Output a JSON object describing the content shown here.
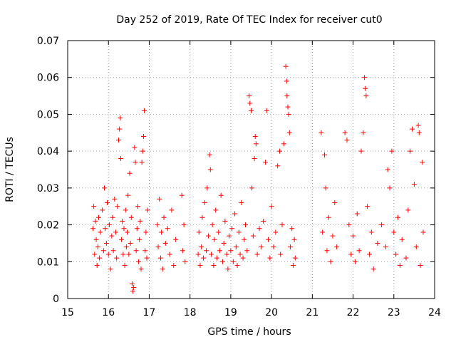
{
  "chart_data": {
    "type": "scatter",
    "title": "Day 252 of 2019, Rate Of TEC Index for receiver cut0",
    "xlabel": "GPS time / hours",
    "ylabel": "ROTI / TECUs",
    "xlim": [
      15,
      24
    ],
    "ylim": [
      0,
      0.07
    ],
    "xticks": [
      15,
      16,
      17,
      18,
      19,
      20,
      21,
      22,
      23,
      24
    ],
    "xtick_labels": [
      "15",
      "16",
      "17",
      "18",
      "19",
      "20",
      "21",
      "22",
      "23",
      "24"
    ],
    "yticks": [
      0,
      0.01,
      0.02,
      0.03,
      0.04,
      0.05,
      0.06,
      0.07
    ],
    "ytick_labels": [
      "0",
      "0.01",
      "0.02",
      "0.03",
      "0.04",
      "0.05",
      "0.06",
      "0.07"
    ],
    "grid": true,
    "marker": "+",
    "color": "#ff0000",
    "series": [
      {
        "name": "ROTI",
        "points": [
          [
            15.62,
            0.019
          ],
          [
            15.64,
            0.025
          ],
          [
            15.66,
            0.012
          ],
          [
            15.68,
            0.021
          ],
          [
            15.7,
            0.016
          ],
          [
            15.72,
            0.009
          ],
          [
            15.74,
            0.014
          ],
          [
            15.76,
            0.022
          ],
          [
            15.78,
            0.011
          ],
          [
            15.8,
            0.018
          ],
          [
            15.85,
            0.024
          ],
          [
            15.88,
            0.013
          ],
          [
            15.9,
            0.03
          ],
          [
            15.92,
            0.019
          ],
          [
            15.95,
            0.015
          ],
          [
            15.97,
            0.026
          ],
          [
            16.0,
            0.012
          ],
          [
            16.02,
            0.02
          ],
          [
            16.05,
            0.008
          ],
          [
            16.08,
            0.017
          ],
          [
            16.1,
            0.022
          ],
          [
            16.12,
            0.013
          ],
          [
            16.15,
            0.027
          ],
          [
            16.18,
            0.018
          ],
          [
            16.2,
            0.011
          ],
          [
            16.22,
            0.025
          ],
          [
            16.25,
            0.043
          ],
          [
            16.27,
            0.046
          ],
          [
            16.29,
            0.049
          ],
          [
            16.3,
            0.038
          ],
          [
            16.32,
            0.016
          ],
          [
            16.34,
            0.021
          ],
          [
            16.36,
            0.012
          ],
          [
            16.38,
            0.019
          ],
          [
            16.4,
            0.009
          ],
          [
            16.42,
            0.024
          ],
          [
            16.44,
            0.014
          ],
          [
            16.46,
            0.018
          ],
          [
            16.48,
            0.028
          ],
          [
            16.5,
            0.012
          ],
          [
            16.52,
            0.034
          ],
          [
            16.54,
            0.015
          ],
          [
            16.56,
            0.022
          ],
          [
            16.58,
            0.004
          ],
          [
            16.6,
            0.002
          ],
          [
            16.62,
            0.003
          ],
          [
            16.64,
            0.041
          ],
          [
            16.66,
            0.037
          ],
          [
            16.68,
            0.013
          ],
          [
            16.7,
            0.019
          ],
          [
            16.72,
            0.025
          ],
          [
            16.74,
            0.01
          ],
          [
            16.76,
            0.016
          ],
          [
            16.78,
            0.021
          ],
          [
            16.8,
            0.008
          ],
          [
            16.82,
            0.037
          ],
          [
            16.84,
            0.04
          ],
          [
            16.86,
            0.044
          ],
          [
            16.88,
            0.051
          ],
          [
            16.9,
            0.013
          ],
          [
            16.92,
            0.018
          ],
          [
            16.94,
            0.011
          ],
          [
            16.96,
            0.024
          ],
          [
            17.2,
            0.02
          ],
          [
            17.22,
            0.014
          ],
          [
            17.25,
            0.027
          ],
          [
            17.28,
            0.011
          ],
          [
            17.3,
            0.018
          ],
          [
            17.33,
            0.008
          ],
          [
            17.36,
            0.022
          ],
          [
            17.4,
            0.015
          ],
          [
            17.45,
            0.019
          ],
          [
            17.5,
            0.012
          ],
          [
            17.55,
            0.024
          ],
          [
            17.6,
            0.009
          ],
          [
            17.65,
            0.016
          ],
          [
            17.8,
            0.028
          ],
          [
            17.82,
            0.013
          ],
          [
            17.85,
            0.02
          ],
          [
            17.88,
            0.01
          ],
          [
            18.2,
            0.012
          ],
          [
            18.22,
            0.018
          ],
          [
            18.25,
            0.009
          ],
          [
            18.28,
            0.014
          ],
          [
            18.3,
            0.022
          ],
          [
            18.33,
            0.011
          ],
          [
            18.36,
            0.026
          ],
          [
            18.4,
            0.013
          ],
          [
            18.42,
            0.03
          ],
          [
            18.45,
            0.017
          ],
          [
            18.48,
            0.039
          ],
          [
            18.5,
            0.035
          ],
          [
            18.52,
            0.012
          ],
          [
            18.55,
            0.02
          ],
          [
            18.58,
            0.009
          ],
          [
            18.6,
            0.016
          ],
          [
            18.63,
            0.024
          ],
          [
            18.66,
            0.011
          ],
          [
            18.7,
            0.018
          ],
          [
            18.73,
            0.013
          ],
          [
            18.76,
            0.028
          ],
          [
            18.8,
            0.01
          ],
          [
            18.83,
            0.015
          ],
          [
            18.86,
            0.021
          ],
          [
            18.9,
            0.012
          ],
          [
            18.93,
            0.008
          ],
          [
            18.96,
            0.017
          ],
          [
            19.0,
            0.013
          ],
          [
            19.03,
            0.019
          ],
          [
            19.06,
            0.01
          ],
          [
            19.1,
            0.023
          ],
          [
            19.13,
            0.014
          ],
          [
            19.16,
            0.009
          ],
          [
            19.2,
            0.018
          ],
          [
            19.23,
            0.012
          ],
          [
            19.26,
            0.026
          ],
          [
            19.3,
            0.011
          ],
          [
            19.33,
            0.016
          ],
          [
            19.36,
            0.02
          ],
          [
            19.4,
            0.013
          ],
          [
            19.45,
            0.055
          ],
          [
            19.47,
            0.053
          ],
          [
            19.5,
            0.051
          ],
          [
            19.52,
            0.03
          ],
          [
            19.55,
            0.017
          ],
          [
            19.58,
            0.038
          ],
          [
            19.6,
            0.044
          ],
          [
            19.62,
            0.042
          ],
          [
            19.65,
            0.012
          ],
          [
            19.7,
            0.019
          ],
          [
            19.75,
            0.014
          ],
          [
            19.8,
            0.021
          ],
          [
            19.85,
            0.037
          ],
          [
            19.88,
            0.051
          ],
          [
            19.92,
            0.016
          ],
          [
            19.96,
            0.011
          ],
          [
            20.0,
            0.025
          ],
          [
            20.05,
            0.014
          ],
          [
            20.1,
            0.018
          ],
          [
            20.15,
            0.036
          ],
          [
            20.2,
            0.04
          ],
          [
            20.22,
            0.012
          ],
          [
            20.26,
            0.02
          ],
          [
            20.3,
            0.042
          ],
          [
            20.35,
            0.063
          ],
          [
            20.37,
            0.059
          ],
          [
            20.38,
            0.055
          ],
          [
            20.4,
            0.052
          ],
          [
            20.42,
            0.05
          ],
          [
            20.44,
            0.045
          ],
          [
            20.46,
            0.014
          ],
          [
            20.5,
            0.019
          ],
          [
            20.53,
            0.009
          ],
          [
            20.56,
            0.016
          ],
          [
            20.58,
            0.011
          ],
          [
            21.22,
            0.045
          ],
          [
            21.25,
            0.018
          ],
          [
            21.3,
            0.039
          ],
          [
            21.33,
            0.03
          ],
          [
            21.36,
            0.013
          ],
          [
            21.4,
            0.022
          ],
          [
            21.45,
            0.01
          ],
          [
            21.5,
            0.017
          ],
          [
            21.55,
            0.026
          ],
          [
            21.6,
            0.014
          ],
          [
            21.8,
            0.045
          ],
          [
            21.85,
            0.043
          ],
          [
            21.9,
            0.02
          ],
          [
            21.95,
            0.012
          ],
          [
            22.0,
            0.017
          ],
          [
            22.05,
            0.01
          ],
          [
            22.1,
            0.023
          ],
          [
            22.15,
            0.013
          ],
          [
            22.2,
            0.04
          ],
          [
            22.25,
            0.045
          ],
          [
            22.28,
            0.06
          ],
          [
            22.3,
            0.057
          ],
          [
            22.32,
            0.055
          ],
          [
            22.35,
            0.025
          ],
          [
            22.4,
            0.012
          ],
          [
            22.45,
            0.018
          ],
          [
            22.5,
            0.008
          ],
          [
            22.6,
            0.015
          ],
          [
            22.7,
            0.02
          ],
          [
            22.8,
            0.014
          ],
          [
            22.85,
            0.035
          ],
          [
            22.9,
            0.03
          ],
          [
            22.95,
            0.04
          ],
          [
            23.0,
            0.018
          ],
          [
            23.05,
            0.012
          ],
          [
            23.1,
            0.022
          ],
          [
            23.15,
            0.009
          ],
          [
            23.2,
            0.016
          ],
          [
            23.3,
            0.011
          ],
          [
            23.35,
            0.024
          ],
          [
            23.4,
            0.04
          ],
          [
            23.45,
            0.046
          ],
          [
            23.5,
            0.031
          ],
          [
            23.55,
            0.014
          ],
          [
            23.6,
            0.047
          ],
          [
            23.62,
            0.045
          ],
          [
            23.65,
            0.009
          ],
          [
            23.7,
            0.037
          ],
          [
            23.72,
            0.018
          ]
        ]
      }
    ]
  }
}
